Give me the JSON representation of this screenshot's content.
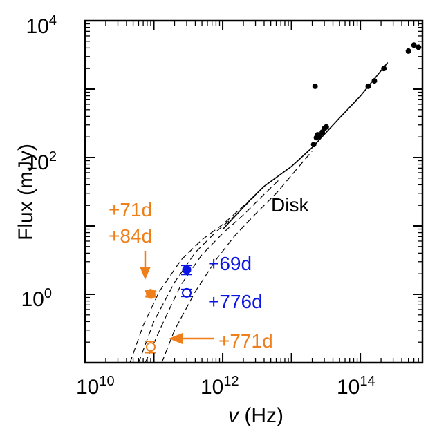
{
  "chart_data": {
    "type": "scatter",
    "title": "",
    "xlabel_var": "v",
    "xlabel_unit": " (Hz)",
    "ylabel": "Flux (mJy)",
    "xscale": "log",
    "yscale": "log",
    "xlim": [
      10000000000.0,
      800000000000000.0
    ],
    "ylim": [
      0.1,
      10000
    ],
    "xticks": [
      {
        "base": "10",
        "exp": "10",
        "value": 10000000000.0
      },
      {
        "base": "10",
        "exp": "12",
        "value": 1000000000000.0
      },
      {
        "base": "10",
        "exp": "14",
        "value": 100000000000000.0
      }
    ],
    "yticks": [
      {
        "base": "10",
        "exp": "0",
        "value": 1
      },
      {
        "base": "10",
        "exp": "2",
        "value": 100
      },
      {
        "base": "10",
        "exp": "4",
        "value": 10000
      }
    ],
    "colors": {
      "orange": "#ef7f1a",
      "blue": "#0b15e6",
      "black": "#000000"
    },
    "series": [
      {
        "color": "#000000",
        "style": "filled",
        "points": [
          [
            22000000000000.0,
            1100
          ],
          [
            21000000000000.0,
            155
          ],
          [
            23000000000000.0,
            195
          ],
          [
            25000000000000.0,
            205
          ],
          [
            24000000000000.0,
            215
          ],
          [
            28000000000000.0,
            235
          ],
          [
            30000000000000.0,
            265
          ],
          [
            32000000000000.0,
            280
          ],
          [
            130000000000000.0,
            1100
          ],
          [
            160000000000000.0,
            1320
          ],
          [
            220000000000000.0,
            2000
          ],
          [
            500000000000000.0,
            3600
          ],
          [
            600000000000000.0,
            4400
          ],
          [
            700000000000000.0,
            4100
          ]
        ]
      },
      {
        "color": "#0b15e6",
        "style": "filled",
        "points": [
          [
            300000000000.0,
            2.3
          ]
        ],
        "yerr": [
          [
            1.95,
            2.65
          ]
        ]
      },
      {
        "color": "#0b15e6",
        "style": "open",
        "points": [
          [
            300000000000.0,
            1.05
          ]
        ],
        "yerr": [
          [
            0.93,
            1.18
          ]
        ]
      },
      {
        "color": "#ef7f1a",
        "style": "filled",
        "points": [
          [
            89000000000.0,
            1.03
          ]
        ],
        "yerr": [
          [
            0.94,
            1.12
          ]
        ]
      },
      {
        "color": "#ef7f1a",
        "style": "filled",
        "points": [
          [
            91000000000.0,
            1.0
          ]
        ],
        "yerr": [
          [
            0.92,
            1.09
          ]
        ]
      },
      {
        "color": "#ef7f1a",
        "style": "open",
        "points": [
          [
            90000000000.0,
            0.17
          ]
        ],
        "yerr": [
          [
            0.14,
            0.205
          ]
        ]
      }
    ],
    "curves": [
      {
        "style": "solid",
        "points": [
          [
            1000000000000.0,
            8.9
          ],
          [
            2500000000000.0,
            24
          ],
          [
            4000000000000.0,
            38
          ],
          [
            10000000000000.0,
            74
          ],
          [
            20000000000000.0,
            140
          ],
          [
            50000000000000.0,
            380
          ],
          [
            100000000000000.0,
            790
          ],
          [
            250000000000000.0,
            2450
          ]
        ]
      },
      {
        "style": "dashed",
        "points": [
          [
            45000000000.0,
            0.1
          ],
          [
            70000000000.0,
            0.35
          ],
          [
            120000000000.0,
            1.1
          ],
          [
            250000000000.0,
            3.2
          ],
          [
            500000000000.0,
            6.3
          ],
          [
            1000000000000.0,
            10.5
          ],
          [
            2500000000000.0,
            24
          ]
        ]
      },
      {
        "style": "dashed",
        "points": [
          [
            60000000000.0,
            0.1
          ],
          [
            100000000000.0,
            0.4
          ],
          [
            200000000000.0,
            1.5
          ],
          [
            400000000000.0,
            4.1
          ],
          [
            800000000000.0,
            8.2
          ],
          [
            1500000000000.0,
            14
          ],
          [
            3000000000000.0,
            28
          ]
        ]
      },
      {
        "style": "dashed",
        "points": [
          [
            75000000000.0,
            0.1
          ],
          [
            130000000000.0,
            0.35
          ],
          [
            250000000000.0,
            1.4
          ],
          [
            500000000000.0,
            3.8
          ],
          [
            1000000000000.0,
            7.8
          ],
          [
            2000000000000.0,
            14.5
          ],
          [
            4000000000000.0,
            29
          ],
          [
            7000000000000.0,
            50
          ]
        ]
      },
      {
        "style": "dashed",
        "points": [
          [
            130000000000.0,
            0.1
          ],
          [
            200000000000.0,
            0.3
          ],
          [
            400000000000.0,
            1.1
          ],
          [
            800000000000.0,
            3.2
          ],
          [
            1500000000000.0,
            7.2
          ],
          [
            3000000000000.0,
            15
          ],
          [
            6000000000000.0,
            30
          ],
          [
            10000000000000.0,
            55
          ],
          [
            20000000000000.0,
            125
          ]
        ]
      }
    ],
    "annotations": [
      {
        "text": "Disk",
        "color": "#000000"
      },
      {
        "text": "+71d",
        "color": "#ef7f1a"
      },
      {
        "text": "+84d",
        "color": "#ef7f1a"
      },
      {
        "text": "+69d",
        "color": "#0b15e6"
      },
      {
        "text": "+776d",
        "color": "#0b15e6"
      },
      {
        "text": "+771d",
        "color": "#ef7f1a"
      }
    ]
  }
}
